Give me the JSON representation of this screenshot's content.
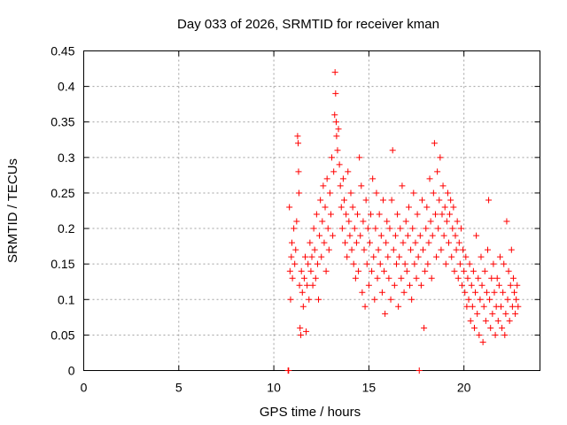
{
  "chart_data": {
    "type": "scatter",
    "title": "Day 033 of 2026, SRMTID for receiver kman",
    "xlabel": "GPS time / hours",
    "ylabel": "SRMTID / TECUs",
    "xlim": [
      0,
      24
    ],
    "ylim": [
      0,
      0.45
    ],
    "xticks": [
      0,
      5,
      10,
      15,
      20
    ],
    "yticks": [
      0,
      0.05,
      0.1,
      0.15,
      0.2,
      0.25,
      0.3,
      0.35,
      0.4,
      0.45
    ],
    "ytick_labels": [
      "0",
      "0.05",
      "0.1",
      "0.15",
      "0.2",
      "0.25",
      "0.3",
      "0.35",
      "0.4",
      "0.45"
    ],
    "xtick_labels": [
      "0",
      "5",
      "10",
      "15",
      "20"
    ],
    "grid": true,
    "legend": "none",
    "marker": "plus",
    "color": "#ff0000",
    "series": [
      {
        "values": [
          [
            10.75,
            0.0
          ],
          [
            10.78,
            0.0
          ],
          [
            10.82,
            0.23
          ],
          [
            10.85,
            0.14
          ],
          [
            10.88,
            0.1
          ],
          [
            10.92,
            0.16
          ],
          [
            10.95,
            0.18
          ],
          [
            10.98,
            0.13
          ],
          [
            11.05,
            0.2
          ],
          [
            11.1,
            0.15
          ],
          [
            11.15,
            0.17
          ],
          [
            11.2,
            0.21
          ],
          [
            11.25,
            0.33
          ],
          [
            11.28,
            0.32
          ],
          [
            11.3,
            0.28
          ],
          [
            11.32,
            0.25
          ],
          [
            11.35,
            0.12
          ],
          [
            11.38,
            0.06
          ],
          [
            11.42,
            0.05
          ],
          [
            11.45,
            0.14
          ],
          [
            11.5,
            0.11
          ],
          [
            11.55,
            0.09
          ],
          [
            11.6,
            0.13
          ],
          [
            11.65,
            0.16
          ],
          [
            11.7,
            0.055
          ],
          [
            11.75,
            0.12
          ],
          [
            11.8,
            0.15
          ],
          [
            11.85,
            0.1
          ],
          [
            11.9,
            0.18
          ],
          [
            11.95,
            0.14
          ],
          [
            12.0,
            0.16
          ],
          [
            12.05,
            0.12
          ],
          [
            12.1,
            0.2
          ],
          [
            12.15,
            0.17
          ],
          [
            12.2,
            0.13
          ],
          [
            12.25,
            0.22
          ],
          [
            12.3,
            0.15
          ],
          [
            12.35,
            0.1
          ],
          [
            12.4,
            0.19
          ],
          [
            12.45,
            0.24
          ],
          [
            12.5,
            0.16
          ],
          [
            12.55,
            0.21
          ],
          [
            12.6,
            0.26
          ],
          [
            12.65,
            0.18
          ],
          [
            12.7,
            0.23
          ],
          [
            12.75,
            0.14
          ],
          [
            12.8,
            0.27
          ],
          [
            12.85,
            0.2
          ],
          [
            12.9,
            0.17
          ],
          [
            12.95,
            0.25
          ],
          [
            13.0,
            0.22
          ],
          [
            13.05,
            0.3
          ],
          [
            13.1,
            0.19
          ],
          [
            13.15,
            0.28
          ],
          [
            13.2,
            0.36
          ],
          [
            13.22,
            0.42
          ],
          [
            13.25,
            0.39
          ],
          [
            13.28,
            0.35
          ],
          [
            13.3,
            0.33
          ],
          [
            13.35,
            0.31
          ],
          [
            13.4,
            0.34
          ],
          [
            13.45,
            0.29
          ],
          [
            13.5,
            0.26
          ],
          [
            13.55,
            0.23
          ],
          [
            13.6,
            0.2
          ],
          [
            13.65,
            0.27
          ],
          [
            13.7,
            0.24
          ],
          [
            13.75,
            0.18
          ],
          [
            13.8,
            0.22
          ],
          [
            13.85,
            0.16
          ],
          [
            13.9,
            0.28
          ],
          [
            13.95,
            0.21
          ],
          [
            14.0,
            0.19
          ],
          [
            14.05,
            0.25
          ],
          [
            14.1,
            0.17
          ],
          [
            14.15,
            0.23
          ],
          [
            14.2,
            0.15
          ],
          [
            14.25,
            0.2
          ],
          [
            14.3,
            0.13
          ],
          [
            14.35,
            0.18
          ],
          [
            14.4,
            0.22
          ],
          [
            14.45,
            0.14
          ],
          [
            14.5,
            0.3
          ],
          [
            14.55,
            0.19
          ],
          [
            14.6,
            0.26
          ],
          [
            14.65,
            0.11
          ],
          [
            14.7,
            0.21
          ],
          [
            14.75,
            0.17
          ],
          [
            14.8,
            0.09
          ],
          [
            14.85,
            0.24
          ],
          [
            14.9,
            0.15
          ],
          [
            14.95,
            0.2
          ],
          [
            15.0,
            0.12
          ],
          [
            15.05,
            0.18
          ],
          [
            15.1,
            0.22
          ],
          [
            15.15,
            0.14
          ],
          [
            15.2,
            0.27
          ],
          [
            15.25,
            0.16
          ],
          [
            15.3,
            0.1
          ],
          [
            15.35,
            0.2
          ],
          [
            15.4,
            0.25
          ],
          [
            15.45,
            0.13
          ],
          [
            15.5,
            0.17
          ],
          [
            15.55,
            0.22
          ],
          [
            15.6,
            0.15
          ],
          [
            15.65,
            0.19
          ],
          [
            15.7,
            0.11
          ],
          [
            15.75,
            0.24
          ],
          [
            15.8,
            0.14
          ],
          [
            15.85,
            0.08
          ],
          [
            15.9,
            0.18
          ],
          [
            15.95,
            0.21
          ],
          [
            16.0,
            0.16
          ],
          [
            16.05,
            0.13
          ],
          [
            16.1,
            0.2
          ],
          [
            16.15,
            0.1
          ],
          [
            16.2,
            0.24
          ],
          [
            16.25,
            0.31
          ],
          [
            16.3,
            0.17
          ],
          [
            16.35,
            0.12
          ],
          [
            16.4,
            0.19
          ],
          [
            16.45,
            0.15
          ],
          [
            16.5,
            0.22
          ],
          [
            16.55,
            0.09
          ],
          [
            16.6,
            0.16
          ],
          [
            16.65,
            0.2
          ],
          [
            16.7,
            0.13
          ],
          [
            16.75,
            0.26
          ],
          [
            16.8,
            0.18
          ],
          [
            16.85,
            0.11
          ],
          [
            16.9,
            0.15
          ],
          [
            16.95,
            0.21
          ],
          [
            17.0,
            0.14
          ],
          [
            17.05,
            0.19
          ],
          [
            17.1,
            0.23
          ],
          [
            17.15,
            0.12
          ],
          [
            17.2,
            0.17
          ],
          [
            17.25,
            0.1
          ],
          [
            17.3,
            0.2
          ],
          [
            17.35,
            0.25
          ],
          [
            17.4,
            0.15
          ],
          [
            17.45,
            0.18
          ],
          [
            17.5,
            0.13
          ],
          [
            17.55,
            0.22
          ],
          [
            17.6,
            0.16
          ],
          [
            17.65,
            0.0
          ],
          [
            17.7,
            0.19
          ],
          [
            17.75,
            0.12
          ],
          [
            17.8,
            0.24
          ],
          [
            17.85,
            0.17
          ],
          [
            17.9,
            0.06
          ],
          [
            17.95,
            0.14
          ],
          [
            18.0,
            0.2
          ],
          [
            18.05,
            0.23
          ],
          [
            18.1,
            0.15
          ],
          [
            18.15,
            0.18
          ],
          [
            18.2,
            0.27
          ],
          [
            18.25,
            0.21
          ],
          [
            18.3,
            0.13
          ],
          [
            18.35,
            0.19
          ],
          [
            18.4,
            0.25
          ],
          [
            18.45,
            0.32
          ],
          [
            18.5,
            0.22
          ],
          [
            18.55,
            0.16
          ],
          [
            18.6,
            0.28
          ],
          [
            18.65,
            0.2
          ],
          [
            18.7,
            0.24
          ],
          [
            18.75,
            0.3
          ],
          [
            18.8,
            0.17
          ],
          [
            18.85,
            0.22
          ],
          [
            18.9,
            0.26
          ],
          [
            18.95,
            0.19
          ],
          [
            19.0,
            0.23
          ],
          [
            19.05,
            0.15
          ],
          [
            19.1,
            0.21
          ],
          [
            19.15,
            0.25
          ],
          [
            19.2,
            0.18
          ],
          [
            19.25,
            0.22
          ],
          [
            19.3,
            0.24
          ],
          [
            19.35,
            0.16
          ],
          [
            19.4,
            0.2
          ],
          [
            19.45,
            0.23
          ],
          [
            19.5,
            0.14
          ],
          [
            19.55,
            0.19
          ],
          [
            19.6,
            0.17
          ],
          [
            19.65,
            0.21
          ],
          [
            19.7,
            0.13
          ],
          [
            19.75,
            0.18
          ],
          [
            19.8,
            0.15
          ],
          [
            19.85,
            0.2
          ],
          [
            19.9,
            0.12
          ],
          [
            19.95,
            0.17
          ],
          [
            20.0,
            0.14
          ],
          [
            20.05,
            0.11
          ],
          [
            20.1,
            0.16
          ],
          [
            20.15,
            0.09
          ],
          [
            20.2,
            0.13
          ],
          [
            20.25,
            0.1
          ],
          [
            20.3,
            0.15
          ],
          [
            20.35,
            0.07
          ],
          [
            20.4,
            0.12
          ],
          [
            20.45,
            0.09
          ],
          [
            20.5,
            0.14
          ],
          [
            20.55,
            0.06
          ],
          [
            20.6,
            0.11
          ],
          [
            20.65,
            0.19
          ],
          [
            20.7,
            0.08
          ],
          [
            20.75,
            0.13
          ],
          [
            20.8,
            0.05
          ],
          [
            20.85,
            0.1
          ],
          [
            20.9,
            0.16
          ],
          [
            20.95,
            0.12
          ],
          [
            21.0,
            0.04
          ],
          [
            21.05,
            0.09
          ],
          [
            21.1,
            0.14
          ],
          [
            21.15,
            0.07
          ],
          [
            21.2,
            0.11
          ],
          [
            21.25,
            0.17
          ],
          [
            21.3,
            0.24
          ],
          [
            21.35,
            0.1
          ],
          [
            21.4,
            0.06
          ],
          [
            21.45,
            0.13
          ],
          [
            21.5,
            0.08
          ],
          [
            21.55,
            0.15
          ],
          [
            21.6,
            0.11
          ],
          [
            21.65,
            0.05
          ],
          [
            21.7,
            0.09
          ],
          [
            21.75,
            0.13
          ],
          [
            21.8,
            0.07
          ],
          [
            21.85,
            0.12
          ],
          [
            21.9,
            0.16
          ],
          [
            21.95,
            0.09
          ],
          [
            22.0,
            0.06
          ],
          [
            22.05,
            0.11
          ],
          [
            22.1,
            0.15
          ],
          [
            22.15,
            0.05
          ],
          [
            22.2,
            0.08
          ],
          [
            22.25,
            0.21
          ],
          [
            22.3,
            0.1
          ],
          [
            22.35,
            0.14
          ],
          [
            22.4,
            0.07
          ],
          [
            22.45,
            0.12
          ],
          [
            22.5,
            0.17
          ],
          [
            22.55,
            0.09
          ],
          [
            22.6,
            0.13
          ],
          [
            22.65,
            0.11
          ],
          [
            22.7,
            0.08
          ],
          [
            22.75,
            0.1
          ],
          [
            22.8,
            0.12
          ],
          [
            22.85,
            0.09
          ]
        ]
      }
    ]
  }
}
